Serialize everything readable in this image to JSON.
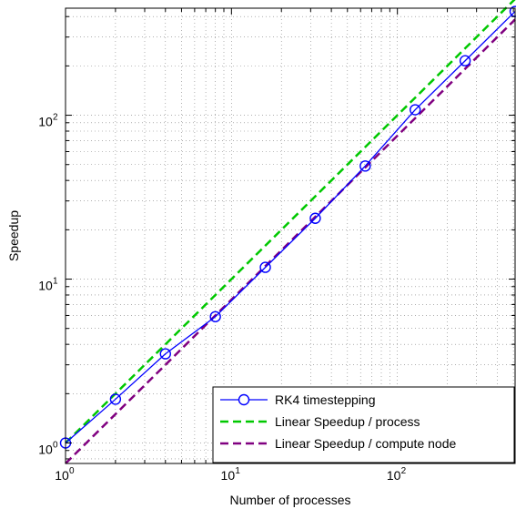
{
  "chart_data": {
    "type": "line",
    "xlabel": "Number of processes",
    "ylabel": "Speedup",
    "xscale": "log",
    "yscale": "log",
    "xlim": [
      1,
      512
    ],
    "ylim": [
      0.75,
      450
    ],
    "grid": true,
    "legend_position": "bottom-right",
    "x_ticks": [
      {
        "base": "10",
        "exp": "0",
        "value": 1
      },
      {
        "base": "10",
        "exp": "1",
        "value": 10
      },
      {
        "base": "10",
        "exp": "2",
        "value": 100
      }
    ],
    "y_ticks": [
      {
        "base": "10",
        "exp": "0",
        "value": 1
      },
      {
        "base": "10",
        "exp": "1",
        "value": 10
      },
      {
        "base": "10",
        "exp": "2",
        "value": 100
      }
    ],
    "series": [
      {
        "name": "RK4 timestepping",
        "color": "#0000ff",
        "style": "solid",
        "marker": "circle",
        "x": [
          1,
          2,
          4,
          8,
          16,
          32,
          64,
          128,
          256,
          512
        ],
        "y": [
          1,
          1.85,
          3.5,
          5.9,
          11.8,
          23.5,
          49,
          108,
          215,
          430
        ]
      },
      {
        "name": "Linear Speedup / process",
        "color": "#00c800",
        "style": "dashed",
        "marker": "none",
        "x": [
          1,
          512
        ],
        "y": [
          1,
          512
        ]
      },
      {
        "name": "Linear Speedup / compute node",
        "color": "#800080",
        "style": "dashed",
        "marker": "none",
        "x": [
          1,
          512
        ],
        "y": [
          0.75,
          384
        ]
      }
    ]
  }
}
